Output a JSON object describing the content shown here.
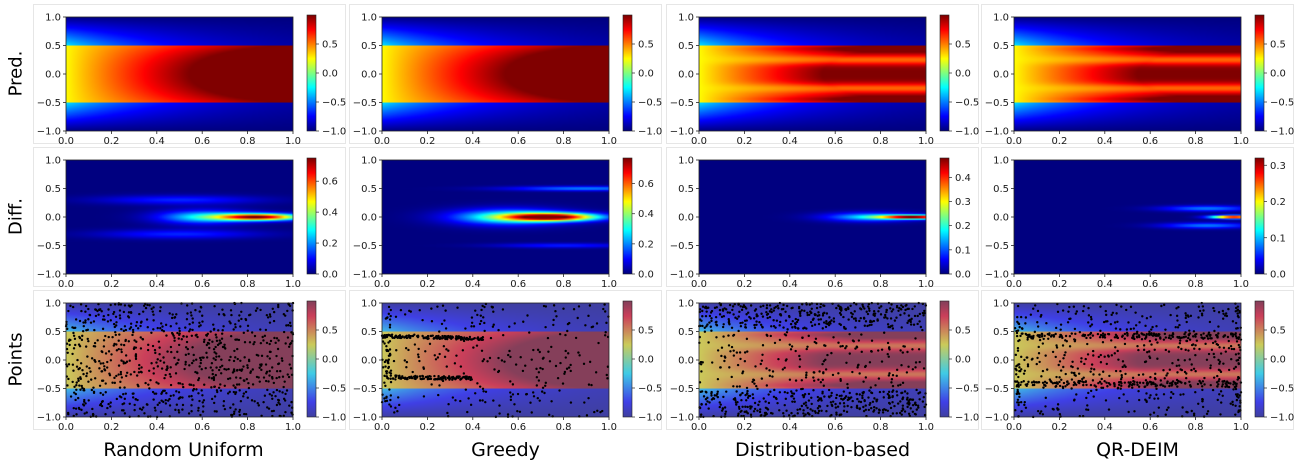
{
  "figure": {
    "columns": [
      "Random Uniform",
      "Greedy",
      "Distribution-based",
      "QR-DEIM"
    ],
    "rows": [
      "Pred.",
      "Diff.",
      "Points"
    ]
  },
  "axes": {
    "x_ticks": [
      "0.0",
      "0.2",
      "0.4",
      "0.6",
      "0.8",
      "1.0"
    ],
    "y_ticks": [
      "−1.0",
      "−0.5",
      "0.0",
      "0.5",
      "1.0"
    ]
  },
  "colorbars": {
    "pred": [
      "0.5",
      "0.0",
      "−0.5",
      "−1.0"
    ],
    "points": [
      "0.5",
      "0.0",
      "−0.5",
      "−1.0"
    ],
    "diff": [
      [
        "0.6",
        "0.4",
        "0.2",
        "0.0"
      ],
      [
        "0.6",
        "0.4",
        "0.2",
        "0.0"
      ],
      [
        "0.4",
        "0.3",
        "0.2",
        "0.1",
        "0.0"
      ],
      [
        "0.3",
        "0.2",
        "0.1",
        "0.0"
      ]
    ]
  },
  "chart_data": [
    {
      "type": "heatmap",
      "row": "Pred.",
      "xlim": [
        0,
        1
      ],
      "ylim": [
        -1,
        1
      ],
      "color_range": [
        -1,
        1
      ],
      "colormap": "jet",
      "panels": [
        "Random Uniform",
        "Greedy",
        "Distribution-based",
        "QR-DEIM"
      ]
    },
    {
      "type": "heatmap",
      "row": "Diff.",
      "xlim": [
        0,
        1
      ],
      "ylim": [
        -1,
        1
      ],
      "colormap": "jet",
      "panels": [
        {
          "method": "Random Uniform",
          "color_range": [
            0,
            0.75
          ]
        },
        {
          "method": "Greedy",
          "color_range": [
            0,
            0.77
          ]
        },
        {
          "method": "Distribution-based",
          "color_range": [
            0,
            0.48
          ]
        },
        {
          "method": "QR-DEIM",
          "color_range": [
            0,
            0.32
          ]
        }
      ]
    },
    {
      "type": "scatter",
      "row": "Points",
      "xlim": [
        0,
        1
      ],
      "ylim": [
        -1,
        1
      ],
      "color_range": [
        -1,
        1
      ],
      "background": "faded jet heatmap of prediction",
      "point_color": "#000000",
      "panels": [
        "Random Uniform",
        "Greedy",
        "Distribution-based",
        "QR-DEIM"
      ]
    }
  ]
}
